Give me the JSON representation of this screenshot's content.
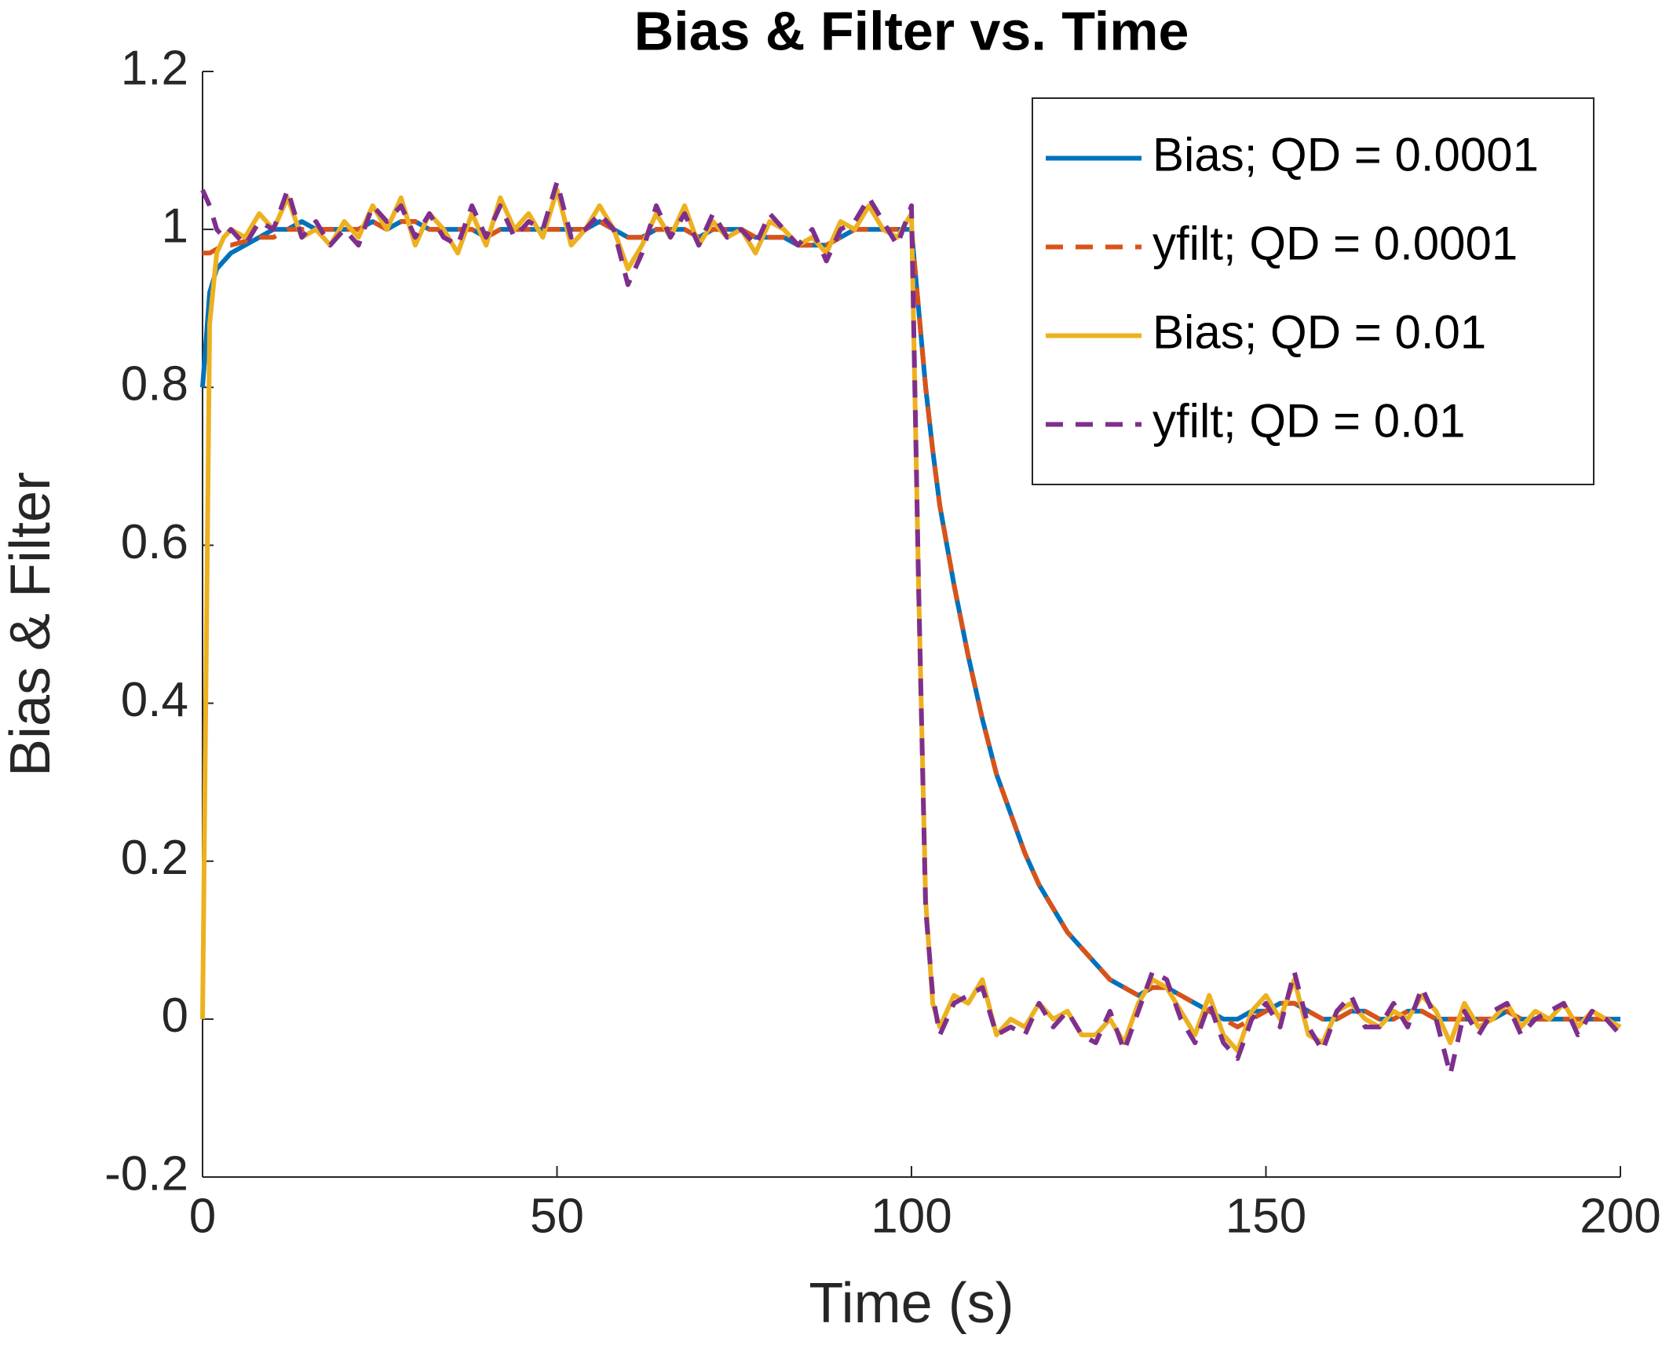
{
  "chart_data": {
    "type": "line",
    "title": "Bias & Filter vs. Time",
    "xlabel": "Time (s)",
    "ylabel": "Bias & Filter",
    "xlim": [
      0,
      200
    ],
    "ylim": [
      -0.2,
      1.2
    ],
    "xticks": [
      0,
      50,
      100,
      150,
      200
    ],
    "yticks": [
      -0.2,
      0,
      0.2,
      0.4,
      0.6,
      0.8,
      1,
      1.2
    ],
    "legend": "upper right",
    "x": [
      0,
      1,
      2,
      3,
      4,
      6,
      8,
      10,
      12,
      14,
      16,
      18,
      20,
      22,
      24,
      26,
      28,
      30,
      32,
      34,
      36,
      38,
      40,
      42,
      44,
      46,
      48,
      50,
      52,
      54,
      56,
      58,
      60,
      62,
      64,
      66,
      68,
      70,
      72,
      74,
      76,
      78,
      80,
      82,
      84,
      86,
      88,
      90,
      92,
      94,
      96,
      98,
      100,
      101,
      102,
      103,
      104,
      106,
      108,
      110,
      112,
      114,
      116,
      118,
      120,
      122,
      124,
      126,
      128,
      130,
      132,
      134,
      136,
      138,
      140,
      142,
      144,
      146,
      148,
      150,
      152,
      154,
      156,
      158,
      160,
      162,
      164,
      166,
      168,
      170,
      172,
      174,
      176,
      178,
      180,
      182,
      184,
      186,
      188,
      190,
      192,
      194,
      196,
      198,
      200
    ],
    "series": [
      {
        "name": "Bias; QD = 0.0001",
        "color": "#0072bd",
        "linestyle": "solid",
        "values": [
          0.8,
          0.92,
          0.95,
          0.96,
          0.97,
          0.98,
          0.99,
          1.0,
          1.0,
          1.01,
          1.0,
          1.0,
          1.0,
          1.0,
          1.01,
          1.0,
          1.01,
          1.01,
          1.0,
          1.0,
          1.0,
          1.0,
          0.99,
          1.0,
          1.0,
          1.0,
          1.0,
          1.0,
          1.0,
          1.0,
          1.01,
          1.0,
          0.99,
          0.99,
          1.0,
          1.0,
          1.0,
          0.99,
          1.0,
          1.0,
          1.0,
          0.99,
          0.99,
          0.99,
          0.98,
          0.98,
          0.98,
          0.99,
          1.0,
          1.0,
          1.0,
          1.0,
          1.0,
          0.9,
          0.8,
          0.72,
          0.65,
          0.55,
          0.46,
          0.38,
          0.31,
          0.26,
          0.21,
          0.17,
          0.14,
          0.11,
          0.09,
          0.07,
          0.05,
          0.04,
          0.03,
          0.04,
          0.04,
          0.03,
          0.02,
          0.01,
          0.0,
          0.0,
          0.01,
          0.01,
          0.02,
          0.02,
          0.01,
          0.0,
          0.0,
          0.01,
          0.01,
          0.0,
          0.0,
          0.01,
          0.01,
          0.0,
          0.0,
          0.0,
          0.0,
          0.0,
          0.01,
          0.0,
          0.0,
          0.0,
          0.0,
          0.0,
          0.0,
          0.0,
          0.0
        ]
      },
      {
        "name": "yfilt; QD = 0.0001",
        "color": "#d95319",
        "linestyle": "dashed",
        "values": [
          0.97,
          0.97,
          0.975,
          0.98,
          0.98,
          0.985,
          0.99,
          0.99,
          1.0,
          1.0,
          1.0,
          1.0,
          1.0,
          1.0,
          1.01,
          1.0,
          1.01,
          1.01,
          1.0,
          1.0,
          1.0,
          1.0,
          0.99,
          1.0,
          1.0,
          1.0,
          1.0,
          1.0,
          1.0,
          1.0,
          1.01,
          1.0,
          0.99,
          0.99,
          1.0,
          1.0,
          1.0,
          0.99,
          1.0,
          1.0,
          1.0,
          0.99,
          0.99,
          0.99,
          0.98,
          0.98,
          0.98,
          0.99,
          1.0,
          1.0,
          1.0,
          1.0,
          1.0,
          0.9,
          0.8,
          0.72,
          0.65,
          0.55,
          0.46,
          0.38,
          0.31,
          0.26,
          0.21,
          0.17,
          0.14,
          0.11,
          0.09,
          0.07,
          0.05,
          0.04,
          0.03,
          0.04,
          0.04,
          0.03,
          0.02,
          0.01,
          0.0,
          -0.01,
          0.0,
          0.01,
          0.02,
          0.02,
          0.01,
          0.0,
          0.0,
          0.01,
          0.01,
          0.0,
          0.0,
          0.01,
          0.01,
          0.0,
          0.0,
          0.0,
          0.0,
          0.0,
          0.01,
          0.0,
          0.0,
          0.0,
          0.0,
          0.0,
          0.0,
          0.0,
          0.0
        ]
      },
      {
        "name": "Bias; QD = 0.01",
        "color": "#edb120",
        "linestyle": "solid",
        "values": [
          0,
          0.88,
          0.97,
          0.99,
          1.0,
          0.99,
          1.02,
          1.0,
          1.04,
          0.99,
          1.0,
          0.98,
          1.01,
          0.99,
          1.03,
          1.0,
          1.04,
          0.98,
          1.02,
          1.0,
          0.97,
          1.02,
          0.98,
          1.04,
          1.0,
          1.02,
          0.99,
          1.05,
          0.98,
          1.0,
          1.03,
          1.0,
          0.95,
          0.98,
          1.02,
          0.99,
          1.03,
          0.98,
          1.01,
          0.99,
          1.0,
          0.97,
          1.01,
          1.0,
          0.98,
          0.99,
          0.97,
          1.01,
          1.0,
          1.03,
          1.0,
          0.99,
          1.02,
          0.55,
          0.15,
          0.02,
          -0.01,
          0.03,
          0.02,
          0.05,
          -0.02,
          0.0,
          -0.01,
          0.02,
          0.0,
          0.01,
          -0.02,
          -0.02,
          0.0,
          -0.03,
          0.02,
          0.05,
          0.04,
          0.01,
          -0.02,
          0.03,
          -0.02,
          -0.04,
          0.01,
          0.03,
          0.0,
          0.05,
          -0.02,
          -0.03,
          0.01,
          0.02,
          0.0,
          -0.01,
          0.01,
          0.0,
          0.03,
          0.01,
          -0.03,
          0.02,
          -0.01,
          0.0,
          0.02,
          -0.01,
          0.01,
          0.0,
          0.02,
          -0.01,
          0.01,
          0.0,
          -0.01
        ]
      },
      {
        "name": "yfilt; QD = 0.01",
        "color": "#7e2f8e",
        "linestyle": "dashed",
        "values": [
          1.05,
          1.03,
          1.0,
          0.99,
          1.0,
          0.98,
          1.01,
          1.0,
          1.05,
          0.99,
          1.01,
          0.98,
          1.0,
          0.98,
          1.03,
          1.01,
          1.03,
          0.99,
          1.02,
          0.99,
          0.98,
          1.03,
          0.99,
          1.03,
          0.99,
          1.01,
          1.0,
          1.06,
          0.99,
          1.0,
          1.02,
          1.0,
          0.93,
          0.97,
          1.03,
          0.99,
          1.02,
          0.98,
          1.02,
          0.99,
          1.0,
          0.98,
          1.02,
          1.0,
          0.98,
          1.0,
          0.96,
          1.0,
          1.01,
          1.04,
          1.01,
          0.98,
          1.03,
          0.55,
          0.14,
          0.03,
          -0.02,
          0.02,
          0.03,
          0.04,
          -0.02,
          -0.01,
          -0.02,
          0.02,
          -0.01,
          0.01,
          -0.02,
          -0.03,
          0.01,
          -0.04,
          0.01,
          0.06,
          0.05,
          0.0,
          -0.03,
          0.02,
          -0.03,
          -0.05,
          0.0,
          0.02,
          -0.01,
          0.06,
          -0.01,
          -0.04,
          0.01,
          0.03,
          -0.01,
          -0.01,
          0.02,
          -0.01,
          0.04,
          0.0,
          -0.07,
          0.01,
          -0.02,
          0.01,
          0.02,
          -0.02,
          0.0,
          0.01,
          0.02,
          -0.02,
          0.01,
          0.0,
          -0.02
        ]
      }
    ]
  }
}
